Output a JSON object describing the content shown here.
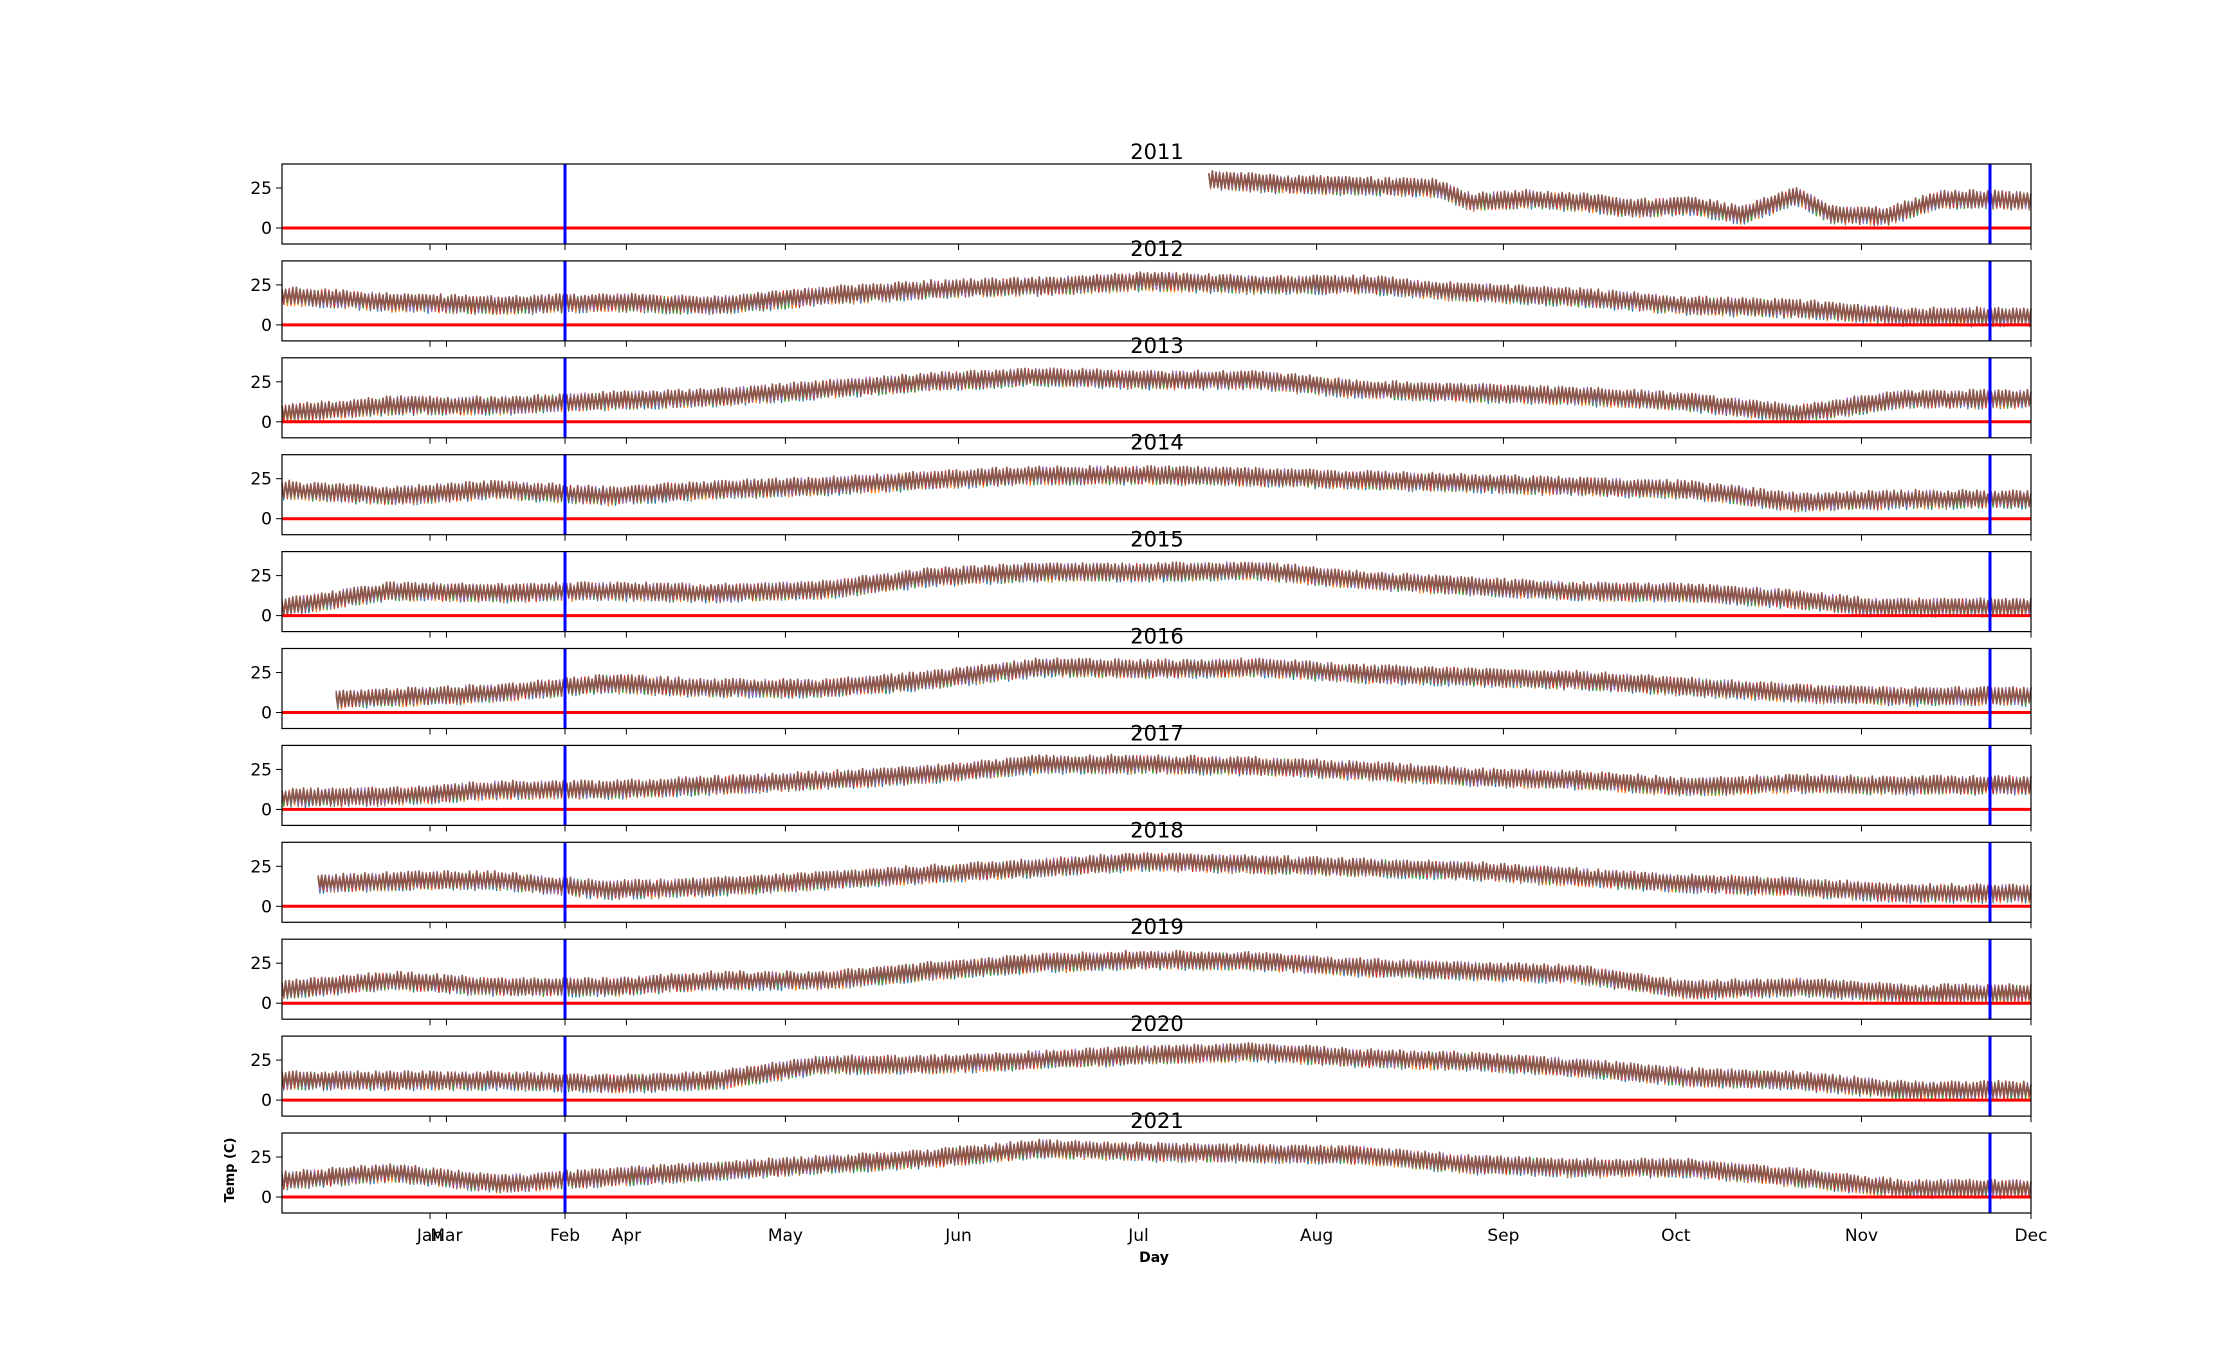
{
  "figure": {
    "xlabel": "Day",
    "ylabel": "Temp (C)"
  },
  "chart_data": {
    "type": "line",
    "x_ticks": [
      "Jan",
      "Feb",
      "Mar",
      "Apr",
      "May",
      "Jun",
      "Jul",
      "Aug",
      "Sep",
      "Oct",
      "Nov",
      "Dec"
    ],
    "y_ticks": [
      "0",
      "25"
    ],
    "ylim": [
      -10,
      40
    ],
    "x_axis": "day of season, Dec to Dec",
    "reference_lines": {
      "zero_line": {
        "y": 0,
        "color": "#ff0000"
      },
      "vertical_lines": {
        "color": "#0000ff",
        "x_labels": [
          "Feb",
          "Nov 24"
        ]
      }
    },
    "series_colors": [
      "#1f77b4",
      "#ff7f0e",
      "#2ca02c",
      "#d62728",
      "#9467bd",
      "#8c564b"
    ],
    "panels": [
      {
        "title": "2011",
        "start_day": 257,
        "anchors": [
          [
            257,
            30
          ],
          [
            280,
            27
          ],
          [
            300,
            26
          ],
          [
            320,
            25
          ],
          [
            330,
            16
          ],
          [
            345,
            18
          ],
          [
            360,
            16
          ],
          [
            375,
            12
          ],
          [
            390,
            14
          ],
          [
            405,
            8
          ],
          [
            420,
            20
          ],
          [
            430,
            8
          ],
          [
            445,
            7
          ],
          [
            460,
            18
          ],
          [
            485,
            17
          ]
        ]
      },
      {
        "title": "2012",
        "start_day": 0,
        "anchors": [
          [
            0,
            18
          ],
          [
            30,
            14
          ],
          [
            60,
            12
          ],
          [
            90,
            14
          ],
          [
            120,
            12
          ],
          [
            150,
            18
          ],
          [
            180,
            22
          ],
          [
            210,
            24
          ],
          [
            240,
            27
          ],
          [
            270,
            25
          ],
          [
            300,
            25
          ],
          [
            330,
            20
          ],
          [
            360,
            17
          ],
          [
            390,
            12
          ],
          [
            420,
            10
          ],
          [
            450,
            5
          ]
        ]
      },
      {
        "title": "2013",
        "start_day": 0,
        "anchors": [
          [
            0,
            5
          ],
          [
            30,
            10
          ],
          [
            60,
            10
          ],
          [
            90,
            13
          ],
          [
            120,
            15
          ],
          [
            150,
            20
          ],
          [
            180,
            25
          ],
          [
            210,
            28
          ],
          [
            240,
            26
          ],
          [
            270,
            26
          ],
          [
            300,
            20
          ],
          [
            330,
            18
          ],
          [
            360,
            16
          ],
          [
            390,
            12
          ],
          [
            420,
            5
          ],
          [
            450,
            14
          ]
        ]
      },
      {
        "title": "2014",
        "start_day": 0,
        "anchors": [
          [
            0,
            18
          ],
          [
            30,
            14
          ],
          [
            60,
            18
          ],
          [
            90,
            14
          ],
          [
            120,
            18
          ],
          [
            150,
            20
          ],
          [
            180,
            24
          ],
          [
            210,
            27
          ],
          [
            240,
            27
          ],
          [
            270,
            26
          ],
          [
            300,
            24
          ],
          [
            330,
            22
          ],
          [
            360,
            20
          ],
          [
            390,
            18
          ],
          [
            420,
            10
          ],
          [
            450,
            12
          ]
        ]
      },
      {
        "title": "2015",
        "start_day": 0,
        "anchors": [
          [
            0,
            5
          ],
          [
            30,
            15
          ],
          [
            60,
            14
          ],
          [
            90,
            15
          ],
          [
            120,
            14
          ],
          [
            150,
            16
          ],
          [
            180,
            24
          ],
          [
            210,
            27
          ],
          [
            240,
            27
          ],
          [
            270,
            28
          ],
          [
            300,
            22
          ],
          [
            330,
            18
          ],
          [
            360,
            15
          ],
          [
            390,
            14
          ],
          [
            420,
            10
          ],
          [
            440,
            5
          ]
        ]
      },
      {
        "title": "2016",
        "start_day": 15,
        "anchors": [
          [
            15,
            8
          ],
          [
            40,
            10
          ],
          [
            60,
            12
          ],
          [
            90,
            18
          ],
          [
            120,
            15
          ],
          [
            150,
            15
          ],
          [
            180,
            20
          ],
          [
            210,
            28
          ],
          [
            240,
            27
          ],
          [
            270,
            28
          ],
          [
            300,
            24
          ],
          [
            330,
            22
          ],
          [
            360,
            20
          ],
          [
            390,
            16
          ],
          [
            420,
            12
          ],
          [
            450,
            10
          ]
        ]
      },
      {
        "title": "2017",
        "start_day": 0,
        "anchors": [
          [
            0,
            7
          ],
          [
            30,
            8
          ],
          [
            60,
            12
          ],
          [
            90,
            12
          ],
          [
            120,
            15
          ],
          [
            150,
            18
          ],
          [
            180,
            22
          ],
          [
            210,
            28
          ],
          [
            240,
            28
          ],
          [
            270,
            27
          ],
          [
            300,
            24
          ],
          [
            330,
            20
          ],
          [
            360,
            18
          ],
          [
            390,
            14
          ],
          [
            420,
            16
          ],
          [
            440,
            15
          ]
        ]
      },
      {
        "title": "2018",
        "start_day": 10,
        "anchors": [
          [
            10,
            14
          ],
          [
            40,
            16
          ],
          [
            60,
            16
          ],
          [
            90,
            10
          ],
          [
            120,
            12
          ],
          [
            150,
            16
          ],
          [
            180,
            20
          ],
          [
            210,
            24
          ],
          [
            240,
            28
          ],
          [
            270,
            26
          ],
          [
            300,
            24
          ],
          [
            330,
            22
          ],
          [
            360,
            18
          ],
          [
            390,
            14
          ],
          [
            420,
            12
          ],
          [
            450,
            8
          ]
        ]
      },
      {
        "title": "2019",
        "start_day": 0,
        "anchors": [
          [
            0,
            8
          ],
          [
            30,
            14
          ],
          [
            60,
            10
          ],
          [
            90,
            10
          ],
          [
            120,
            14
          ],
          [
            150,
            14
          ],
          [
            180,
            20
          ],
          [
            210,
            25
          ],
          [
            240,
            27
          ],
          [
            270,
            26
          ],
          [
            300,
            22
          ],
          [
            330,
            20
          ],
          [
            360,
            18
          ],
          [
            390,
            8
          ],
          [
            420,
            10
          ],
          [
            450,
            6
          ]
        ]
      },
      {
        "title": "2020",
        "start_day": 0,
        "anchors": [
          [
            0,
            12
          ],
          [
            30,
            12
          ],
          [
            60,
            12
          ],
          [
            90,
            10
          ],
          [
            120,
            12
          ],
          [
            150,
            22
          ],
          [
            180,
            22
          ],
          [
            210,
            25
          ],
          [
            240,
            28
          ],
          [
            270,
            30
          ],
          [
            300,
            26
          ],
          [
            330,
            24
          ],
          [
            360,
            20
          ],
          [
            390,
            14
          ],
          [
            420,
            12
          ],
          [
            450,
            6
          ]
        ]
      },
      {
        "title": "2021",
        "start_day": 0,
        "anchors": [
          [
            0,
            10
          ],
          [
            30,
            15
          ],
          [
            60,
            8
          ],
          [
            90,
            12
          ],
          [
            120,
            16
          ],
          [
            150,
            20
          ],
          [
            180,
            24
          ],
          [
            210,
            30
          ],
          [
            240,
            28
          ],
          [
            270,
            27
          ],
          [
            300,
            26
          ],
          [
            330,
            20
          ],
          [
            360,
            18
          ],
          [
            390,
            18
          ],
          [
            420,
            12
          ],
          [
            450,
            5
          ]
        ]
      }
    ]
  }
}
